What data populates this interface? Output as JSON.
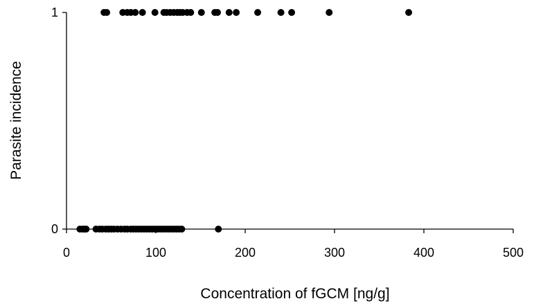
{
  "chart_data": {
    "type": "scatter",
    "title": "",
    "xlabel": "Concentration of fGCM [ng/g]",
    "ylabel": "Parasite incidence",
    "xlim": [
      0,
      500
    ],
    "ylim": [
      0,
      1
    ],
    "xticks": [
      0,
      100,
      200,
      300,
      400,
      500
    ],
    "yticks": [
      0,
      1
    ],
    "xtick_labels": [
      "0",
      "100",
      "200",
      "300",
      "400",
      "500"
    ],
    "ytick_labels": [
      "0",
      "1"
    ],
    "grid": false,
    "legend": "none",
    "marker_color": "#000000",
    "series": [
      {
        "x": [
          42,
          45,
          63,
          68,
          72,
          77,
          85,
          99,
          109,
          112,
          116,
          120,
          124,
          127,
          130,
          135,
          139,
          151,
          166,
          169,
          182,
          190,
          214,
          240,
          252,
          294,
          383,
          15,
          18,
          20,
          22,
          33,
          37,
          40,
          44,
          47,
          50,
          53,
          57,
          61,
          65,
          68,
          72,
          75,
          78,
          81,
          84,
          87,
          90,
          93,
          96,
          99,
          102,
          105,
          108,
          111,
          114,
          117,
          120,
          123,
          126,
          129,
          170
        ],
        "y": [
          1,
          1,
          1,
          1,
          1,
          1,
          1,
          1,
          1,
          1,
          1,
          1,
          1,
          1,
          1,
          1,
          1,
          1,
          1,
          1,
          1,
          1,
          1,
          1,
          1,
          1,
          1,
          0,
          0,
          0,
          0,
          0,
          0,
          0,
          0,
          0,
          0,
          0,
          0,
          0,
          0,
          0,
          0,
          0,
          0,
          0,
          0,
          0,
          0,
          0,
          0,
          0,
          0,
          0,
          0,
          0,
          0,
          0,
          0,
          0,
          0,
          0,
          0
        ]
      }
    ]
  }
}
